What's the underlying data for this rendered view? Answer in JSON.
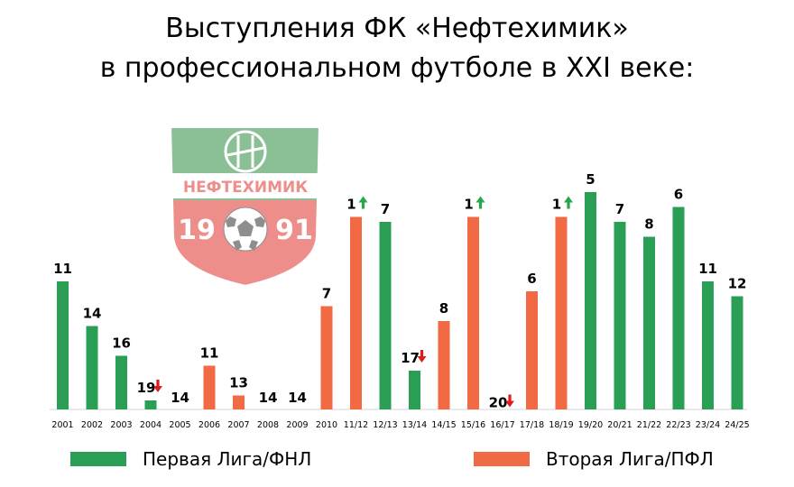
{
  "title_line1": "Выступления ФК «Нефтехимик»",
  "title_line2": "в профессиональном футболе в XXI веке:",
  "logo": {
    "name": "НЕФТЕХИМИК",
    "year_left": "19",
    "year_right": "91",
    "colors": {
      "top": "#2d8e43",
      "bottom": "#e0322d"
    }
  },
  "colors": {
    "first_league": "#2a9e54",
    "second_league": "#f26a43",
    "up_arrow": "#2aa64a",
    "down_arrow": "#e01b1b"
  },
  "legend": {
    "first_league": "Первая Лига/ФНЛ",
    "second_league": "Вторая Лига/ПФЛ"
  },
  "chart_data": {
    "type": "bar",
    "title": "Выступления ФК «Нефтехимик» в профессиональном футболе в XXI веке:",
    "categories": [
      "2001",
      "2002",
      "2003",
      "2004",
      "2005",
      "2006",
      "2007",
      "2008",
      "2009",
      "2010",
      "11/12",
      "12/13",
      "13/14",
      "14/15",
      "15/16",
      "16/17",
      "17/18",
      "18/19",
      "19/20",
      "20/21",
      "21/22",
      "22/23",
      "23/24",
      "24/25"
    ],
    "values": [
      11,
      14,
      16,
      19,
      14,
      11,
      13,
      14,
      14,
      7,
      1,
      7,
      17,
      8,
      1,
      20,
      6,
      1,
      5,
      7,
      8,
      6,
      11,
      12
    ],
    "league": [
      "first",
      "first",
      "first",
      "first",
      "second",
      "second",
      "second",
      "second",
      "second",
      "second",
      "second",
      "first",
      "first",
      "second",
      "second",
      "first",
      "second",
      "second",
      "first",
      "first",
      "first",
      "first",
      "first",
      "first"
    ],
    "movement": [
      "",
      "",
      "",
      "down",
      "",
      "",
      "",
      "",
      "",
      "",
      "up",
      "",
      "down",
      "",
      "up",
      "down",
      "",
      "up",
      "",
      "",
      "",
      "",
      "",
      ""
    ],
    "y_axis": "league position (bar height reflects placement; 1 = top)",
    "legend": [
      "Первая Лига/ФНЛ",
      "Вторая Лига/ПФЛ"
    ],
    "legend_placement": "bottom"
  }
}
